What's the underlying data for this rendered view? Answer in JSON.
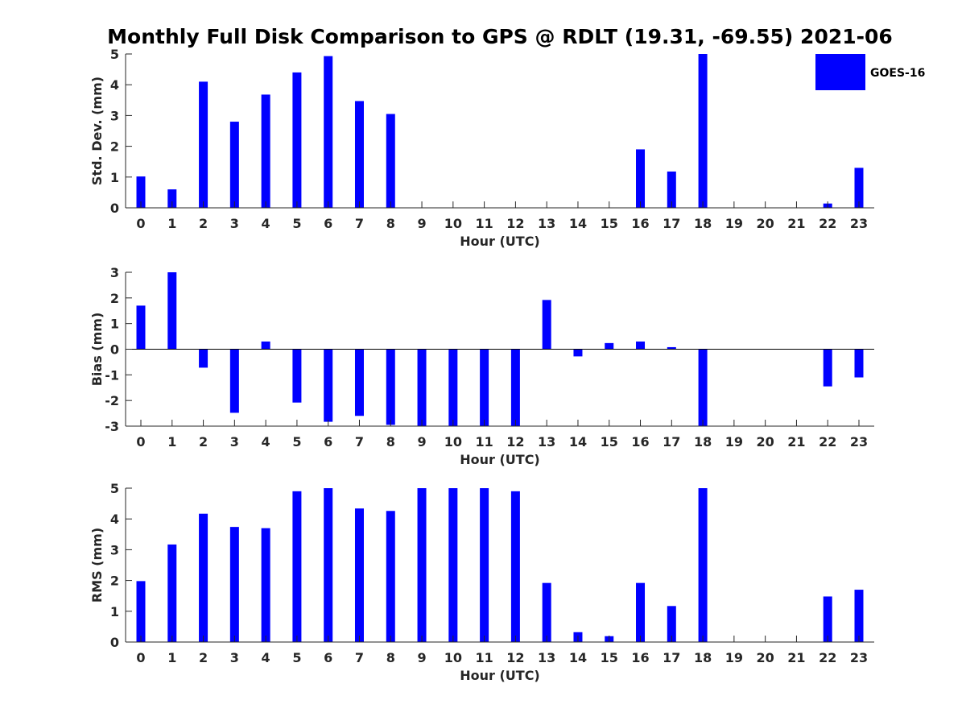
{
  "chart_data": {
    "title": "Monthly Full Disk Comparison to GPS @ RDLT (19.31, -69.55) 2021-06",
    "legend": {
      "label": "GOES-16",
      "color": "#0000ff",
      "location": "top-right"
    },
    "bar_color": "#0000ff",
    "categories": [
      "0",
      "1",
      "2",
      "3",
      "4",
      "5",
      "6",
      "7",
      "8",
      "9",
      "10",
      "11",
      "12",
      "13",
      "14",
      "15",
      "16",
      "17",
      "18",
      "19",
      "20",
      "21",
      "22",
      "23"
    ],
    "panels": [
      {
        "name": "std-dev",
        "type": "bar",
        "xlabel": "Hour (UTC)",
        "ylabel": "Std. Dev. (mm)",
        "ylim": [
          0,
          5
        ],
        "yticks": [
          0,
          1,
          2,
          3,
          4,
          5
        ],
        "yticklabels": [
          "0",
          "1",
          "2",
          "3",
          "4",
          "5"
        ],
        "values": [
          1.02,
          0.6,
          4.1,
          2.8,
          3.68,
          4.4,
          4.93,
          3.47,
          3.05,
          null,
          null,
          null,
          null,
          null,
          null,
          null,
          1.9,
          1.18,
          5.0,
          null,
          null,
          null,
          0.14,
          1.3
        ]
      },
      {
        "name": "bias",
        "type": "bar",
        "xlabel": "Hour (UTC)",
        "ylabel": "Bias (mm)",
        "ylim": [
          -3,
          3
        ],
        "yticks": [
          -3,
          -2,
          -1,
          0,
          1,
          2,
          3
        ],
        "yticklabels": [
          "-3",
          "-2",
          "-1",
          "0",
          "1",
          "2",
          "3"
        ],
        "values": [
          1.7,
          3.0,
          -0.72,
          -2.48,
          0.3,
          -2.08,
          -2.83,
          -2.6,
          -2.95,
          -3.0,
          -3.0,
          -3.0,
          -3.0,
          1.92,
          -0.28,
          0.24,
          0.3,
          0.08,
          -3.0,
          null,
          null,
          null,
          -1.45,
          -1.1
        ]
      },
      {
        "name": "rms",
        "type": "bar",
        "xlabel": "Hour (UTC)",
        "ylabel": "RMS (mm)",
        "ylim": [
          0,
          5
        ],
        "yticks": [
          0,
          1,
          2,
          3,
          4,
          5
        ],
        "yticklabels": [
          "0",
          "1",
          "2",
          "3",
          "4",
          "5"
        ],
        "values": [
          1.98,
          3.17,
          4.17,
          3.74,
          3.7,
          4.9,
          5.0,
          4.34,
          4.26,
          5.0,
          5.0,
          5.0,
          4.9,
          1.92,
          0.32,
          0.19,
          1.92,
          1.17,
          5.0,
          null,
          null,
          null,
          1.48,
          1.7
        ]
      }
    ]
  }
}
